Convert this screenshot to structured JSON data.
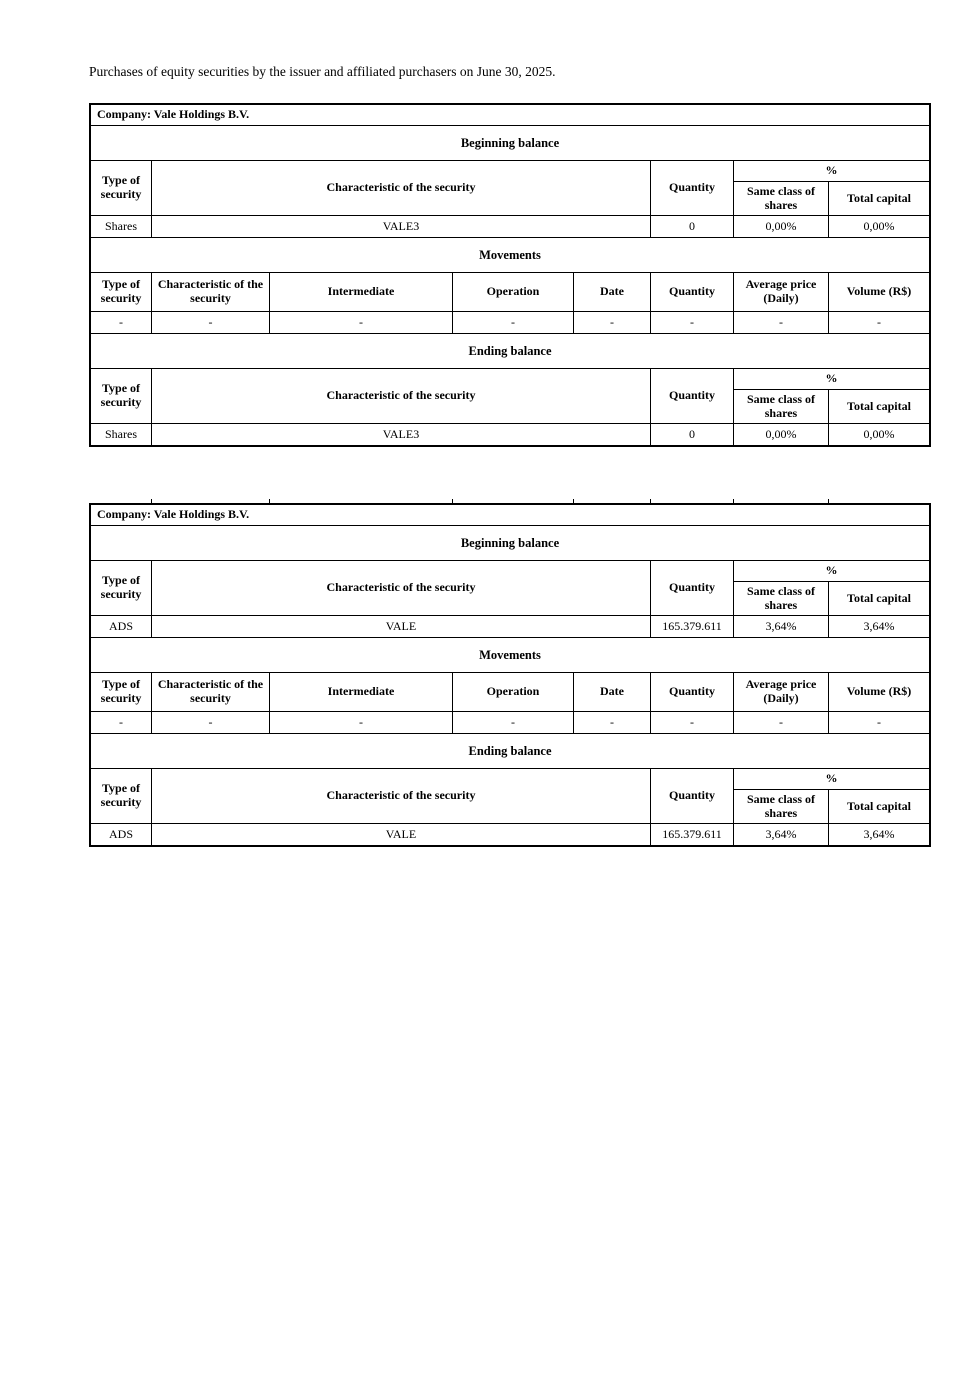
{
  "page": {
    "title": "Purchases of equity securities by the issuer and affiliated purchasers on June 30, 2025."
  },
  "labels": {
    "beginning_balance": "Beginning balance",
    "movements": "Movements",
    "ending_balance": "Ending balance",
    "type_of_security": "Type of security",
    "characteristic_of_security": "Characteristic of the security",
    "quantity": "Quantity",
    "percent": "%",
    "same_class_of_shares": "Same class of shares",
    "total_capital": "Total capital",
    "intermediate": "Intermediate",
    "operation": "Operation",
    "date": "Date",
    "average_price_daily": "Average price (Daily)",
    "volume_rs": "Volume (R$)"
  },
  "tables": [
    {
      "company_line": "Company: Vale Holdings B.V.",
      "beginning": {
        "type": "Shares",
        "characteristic": "VALE3",
        "quantity": "0",
        "same_class": "0,00%",
        "total_capital": "0,00%"
      },
      "movement": {
        "type": "-",
        "characteristic": "-",
        "intermediate": "-",
        "operation": "-",
        "date": "-",
        "quantity": "-",
        "avg_price": "-",
        "volume": "-"
      },
      "ending": {
        "type": "Shares",
        "characteristic": "VALE3",
        "quantity": "0",
        "same_class": "0,00%",
        "total_capital": "0,00%"
      }
    },
    {
      "company_line": "Company: Vale Holdings B.V.",
      "beginning": {
        "type": "ADS",
        "characteristic": "VALE",
        "quantity": "165.379.611",
        "same_class": "3,64%",
        "total_capital": "3,64%"
      },
      "movement": {
        "type": "-",
        "characteristic": "-",
        "intermediate": "-",
        "operation": "-",
        "date": "-",
        "quantity": "-",
        "avg_price": "-",
        "volume": "-"
      },
      "ending": {
        "type": "ADS",
        "characteristic": "VALE",
        "quantity": "165.379.611",
        "same_class": "3,64%",
        "total_capital": "3,64%"
      }
    }
  ]
}
